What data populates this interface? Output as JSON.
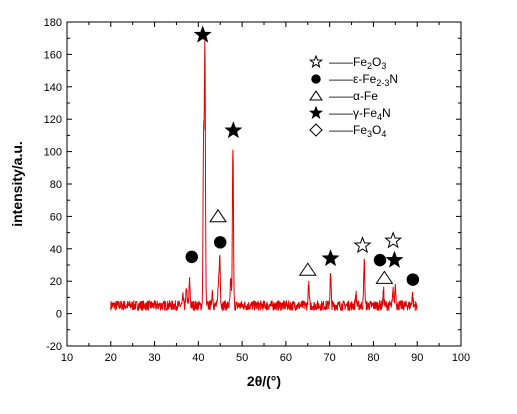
{
  "chart_data": {
    "type": "line",
    "title": "",
    "xlabel": "2θ/(°)",
    "ylabel": "intensity/a.u.",
    "xlim": [
      10,
      100
    ],
    "ylim": [
      -20,
      180
    ],
    "xticks": [
      10,
      20,
      30,
      40,
      50,
      60,
      70,
      80,
      90,
      100
    ],
    "yticks": [
      -20,
      0,
      20,
      40,
      60,
      80,
      100,
      120,
      140,
      160,
      180
    ],
    "grid": false,
    "line_color": "#e00000",
    "x_range": [
      20,
      90
    ],
    "baseline": 5,
    "noise_amplitude": 3,
    "peaks": [
      {
        "x": 36.5,
        "y": 10
      },
      {
        "x": 37.3,
        "y": 16
      },
      {
        "x": 38.0,
        "y": 20
      },
      {
        "x": 41.2,
        "y": 107
      },
      {
        "x": 41.5,
        "y": 162
      },
      {
        "x": 43.2,
        "y": 14
      },
      {
        "x": 44.6,
        "y": 20
      },
      {
        "x": 44.9,
        "y": 36
      },
      {
        "x": 47.4,
        "y": 20
      },
      {
        "x": 47.9,
        "y": 103
      },
      {
        "x": 65.2,
        "y": 18
      },
      {
        "x": 70.2,
        "y": 24
      },
      {
        "x": 76.0,
        "y": 12
      },
      {
        "x": 77.9,
        "y": 33
      },
      {
        "x": 82.3,
        "y": 14
      },
      {
        "x": 84.5,
        "y": 14
      },
      {
        "x": 85.0,
        "y": 18
      },
      {
        "x": 88.9,
        "y": 12
      }
    ],
    "markers": [
      {
        "phase": "Fe4N",
        "symbol": "filled-star",
        "x": 41.0,
        "y": 172
      },
      {
        "phase": "Fe4N",
        "symbol": "filled-star",
        "x": 48.0,
        "y": 113
      },
      {
        "phase": "Fe4N",
        "symbol": "filled-star",
        "x": 70.2,
        "y": 34
      },
      {
        "phase": "Fe4N",
        "symbol": "filled-star",
        "x": 84.8,
        "y": 33
      },
      {
        "phase": "ε-Fe2-3N",
        "symbol": "filled-circle",
        "x": 38.5,
        "y": 35
      },
      {
        "phase": "ε-Fe2-3N",
        "symbol": "filled-circle",
        "x": 45.0,
        "y": 44
      },
      {
        "phase": "ε-Fe2-3N",
        "symbol": "filled-circle",
        "x": 81.5,
        "y": 33
      },
      {
        "phase": "ε-Fe2-3N",
        "symbol": "filled-circle",
        "x": 89.0,
        "y": 21
      },
      {
        "phase": "α-Fe",
        "symbol": "open-triangle",
        "x": 44.5,
        "y": 60
      },
      {
        "phase": "α-Fe",
        "symbol": "open-triangle",
        "x": 65.0,
        "y": 27
      },
      {
        "phase": "α-Fe",
        "symbol": "open-triangle",
        "x": 82.5,
        "y": 22
      },
      {
        "phase": "Fe2O3",
        "symbol": "open-star",
        "x": 77.5,
        "y": 42
      },
      {
        "phase": "Fe2O3",
        "symbol": "open-star",
        "x": 84.5,
        "y": 45
      }
    ],
    "legend": {
      "placement": "top-right",
      "entries": [
        {
          "symbol": "open-star",
          "dash": "——",
          "text": "Fe",
          "subs": [
            [
              "2",
              "O"
            ],
            [
              "3",
              ""
            ]
          ],
          "raw": "Fe2O3"
        },
        {
          "symbol": "filled-circle",
          "dash": "——",
          "text": "ε-Fe",
          "subs": [
            [
              "2-3",
              "N"
            ]
          ],
          "raw": "ε-Fe2-3N"
        },
        {
          "symbol": "open-triangle",
          "dash": "——",
          "text": "α-Fe",
          "subs": [],
          "raw": "α-Fe"
        },
        {
          "symbol": "filled-star",
          "dash": "——",
          "text": "γ-Fe",
          "subs": [
            [
              "4",
              "N"
            ]
          ],
          "raw": "γ-Fe4N"
        },
        {
          "symbol": "open-diamond",
          "dash": "——",
          "text": "Fe",
          "subs": [
            [
              "3",
              "O"
            ],
            [
              "4",
              ""
            ]
          ],
          "raw": "Fe3O4"
        }
      ]
    }
  }
}
